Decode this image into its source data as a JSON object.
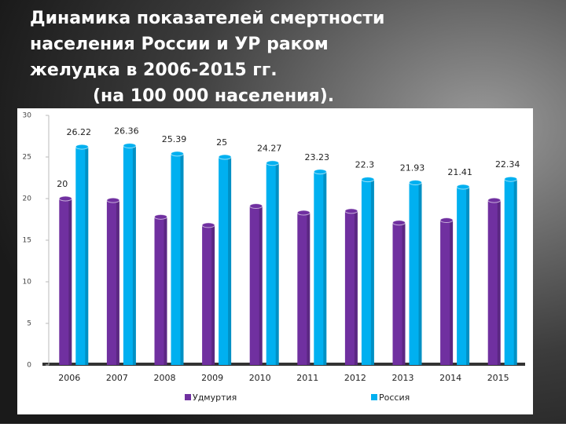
{
  "chart_data": {
    "type": "bar",
    "title": [
      "Динамика показателей смертности",
      "населения России и УР  раком",
      "желудка в 2006-2015 гг."
    ],
    "subtitle": "(на 100 000 населения).",
    "categories": [
      "2006",
      "2007",
      "2008",
      "2009",
      "2010",
      "2011",
      "2012",
      "2013",
      "2014",
      "2015"
    ],
    "series": [
      {
        "name": "Удмуртия",
        "color": "#7030a0",
        "values": [
          20,
          19.8,
          17.8,
          16.8,
          19.1,
          18.3,
          18.5,
          17.1,
          17.4,
          19.8
        ],
        "value_labels": [
          "20",
          null,
          null,
          null,
          null,
          null,
          null,
          null,
          null,
          null
        ]
      },
      {
        "name": "Россия",
        "color": "#00b0f0",
        "values": [
          26.22,
          26.36,
          25.39,
          25,
          24.27,
          23.23,
          22.3,
          21.93,
          21.41,
          22.34
        ]
      }
    ],
    "ylim": [
      0,
      30
    ],
    "yticks": [
      0,
      5,
      10,
      15,
      20,
      25,
      30
    ],
    "grid": false,
    "legend": "bottom"
  }
}
